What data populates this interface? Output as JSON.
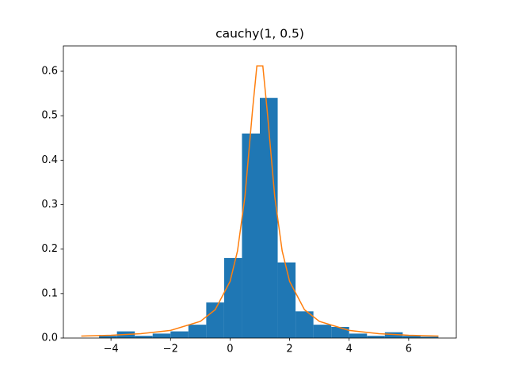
{
  "chart_data": {
    "type": "histogram",
    "title": "cauchy(1, 0.5)",
    "bins": [
      -4.4,
      -3.8,
      -3.2,
      -2.6,
      -2.0,
      -1.4,
      -0.8,
      -0.2,
      0.4,
      1.0,
      1.6,
      2.2,
      2.8,
      3.4,
      4.0,
      4.6,
      5.2,
      5.8,
      6.4,
      7.0
    ],
    "values": [
      0.005,
      0.015,
      0.005,
      0.01,
      0.015,
      0.03,
      0.08,
      0.18,
      0.46,
      0.54,
      0.17,
      0.06,
      0.03,
      0.025,
      0.01,
      0.005,
      0.013,
      0.005,
      0.003
    ],
    "color": "#1f77b4",
    "line": {
      "color": "#ff7f0e",
      "x": [
        -5,
        -4,
        -3,
        -2,
        -1,
        -0.5,
        0,
        0.25,
        0.5,
        0.75,
        0.9,
        1.1,
        1.25,
        1.5,
        1.75,
        2,
        2.5,
        3,
        4,
        5,
        6,
        7
      ],
      "values": [
        0.00439,
        0.0063,
        0.00979,
        0.01721,
        0.03745,
        0.06366,
        0.12732,
        0.19588,
        0.31831,
        0.5093,
        0.61213,
        0.61213,
        0.5093,
        0.31831,
        0.19588,
        0.12732,
        0.06366,
        0.03745,
        0.01721,
        0.00979,
        0.0063,
        0.00439
      ]
    },
    "xlim": [
      -5.6,
      7.6
    ],
    "xticks": [
      {
        "value": -4,
        "label": "−4"
      },
      {
        "value": -2,
        "label": "−2"
      },
      0,
      2,
      4,
      6
    ],
    "ylim": [
      0,
      0.657
    ],
    "yticks": [
      {
        "value": 0,
        "label": "0.0"
      },
      0.1,
      0.2,
      0.3,
      0.4,
      0.5,
      0.6
    ]
  }
}
